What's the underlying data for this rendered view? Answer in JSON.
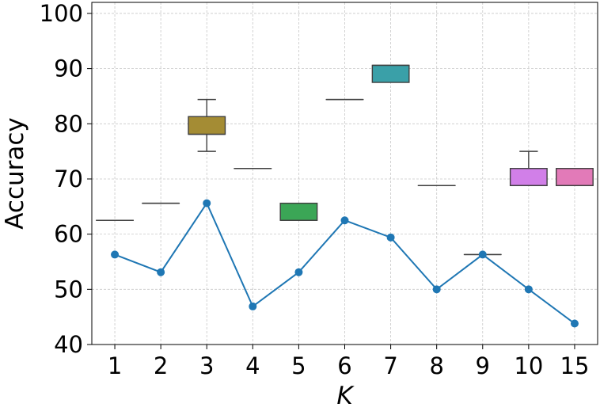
{
  "chart_data": {
    "type": "box+line",
    "title": "",
    "xlabel": "K",
    "ylabel": "Accuracy",
    "categories": [
      "1",
      "2",
      "3",
      "4",
      "5",
      "6",
      "7",
      "8",
      "9",
      "10",
      "15"
    ],
    "ylim": [
      40,
      102
    ],
    "yticks": [
      40,
      50,
      60,
      70,
      80,
      90,
      100
    ],
    "grid": true,
    "boxes": [
      {
        "category": "1",
        "whisker_low": 62.5,
        "q1": 62.5,
        "median": 62.5,
        "q3": 62.5,
        "whisker_high": 62.5,
        "color": "#e5737a"
      },
      {
        "category": "2",
        "whisker_low": 65.6,
        "q1": 65.6,
        "median": 65.6,
        "q3": 65.6,
        "whisker_high": 65.6,
        "color": "#d8834a"
      },
      {
        "category": "3",
        "whisker_low": 75.0,
        "q1": 78.1,
        "median": 78.1,
        "q3": 81.3,
        "whisker_high": 84.4,
        "color": "#a48c34"
      },
      {
        "category": "4",
        "whisker_low": 71.9,
        "q1": 71.9,
        "median": 71.9,
        "q3": 71.9,
        "whisker_high": 71.9,
        "color": "#7c9a36"
      },
      {
        "category": "5",
        "whisker_low": 62.5,
        "q1": 62.5,
        "median": 62.5,
        "q3": 65.6,
        "whisker_high": 65.6,
        "color": "#3ba656"
      },
      {
        "category": "6",
        "whisker_low": 84.4,
        "q1": 84.4,
        "median": 84.4,
        "q3": 84.4,
        "whisker_high": 84.4,
        "color": "#3aa394"
      },
      {
        "category": "7",
        "whisker_low": 87.5,
        "q1": 87.5,
        "median": 90.6,
        "q3": 90.6,
        "whisker_high": 90.6,
        "color": "#3aa0a8"
      },
      {
        "category": "8",
        "whisker_low": 68.8,
        "q1": 68.8,
        "median": 68.8,
        "q3": 68.8,
        "whisker_high": 68.8,
        "color": "#4499c9"
      },
      {
        "category": "9",
        "whisker_low": 56.3,
        "q1": 56.3,
        "median": 56.3,
        "q3": 56.3,
        "whisker_high": 56.3,
        "color": "#8f8fe0"
      },
      {
        "category": "10",
        "whisker_low": 68.8,
        "q1": 68.8,
        "median": 68.8,
        "q3": 71.9,
        "whisker_high": 75.0,
        "color": "#d17fe8"
      },
      {
        "category": "15",
        "whisker_low": 68.8,
        "q1": 68.8,
        "median": 68.8,
        "q3": 71.9,
        "whisker_high": 71.9,
        "color": "#e27ab8"
      }
    ],
    "series": [
      {
        "type": "line",
        "color": "#1f77b4",
        "values": [
          56.3,
          53.1,
          65.6,
          46.9,
          53.1,
          62.5,
          59.4,
          50.0,
          56.3,
          50.0,
          43.8
        ]
      }
    ]
  }
}
